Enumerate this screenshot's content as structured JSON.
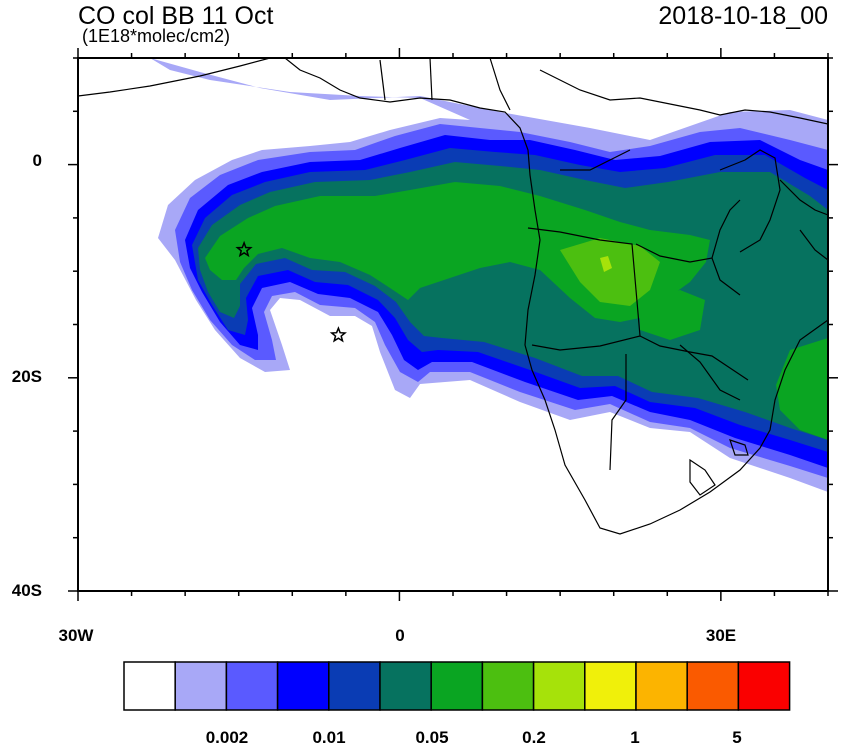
{
  "header": {
    "title": "CO col BB 11 Oct",
    "units": "(1E18*molec/cm2)",
    "date": "2018-10-18_00"
  },
  "map": {
    "lon_range": [
      -30,
      40
    ],
    "lat_range": [
      -40,
      10
    ],
    "lat_labels": [
      "0",
      "20S",
      "40S"
    ],
    "lon_labels": [
      "30W",
      "0",
      "30E"
    ],
    "markers": [
      {
        "lon": -14.5,
        "lat": -8.0,
        "shape": "star"
      },
      {
        "lon": -5.7,
        "lat": -16.0,
        "shape": "star"
      }
    ]
  },
  "colorbar": {
    "colors": [
      "#ffffff",
      "#a8a8f7",
      "#5a5aff",
      "#0000ff",
      "#0a3cb4",
      "#06725f",
      "#0aa522",
      "#4cbf10",
      "#a6e20a",
      "#f0f00a",
      "#fcb400",
      "#fa5a00",
      "#fa0000"
    ],
    "labels": [
      "0.002",
      "0.01",
      "0.05",
      "0.2",
      "1",
      "5"
    ]
  }
}
